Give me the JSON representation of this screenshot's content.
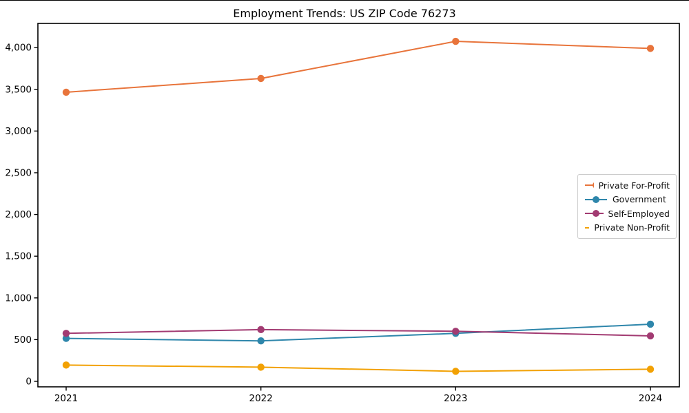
{
  "chart_data": {
    "type": "line",
    "title": "Employment Trends: US ZIP Code 76273",
    "xlabel": "",
    "ylabel": "",
    "x_categories": [
      "2021",
      "2022",
      "2023",
      "2024"
    ],
    "series": [
      {
        "name": "Private For-Profit",
        "color": "#E8743B",
        "values": [
          3465,
          3630,
          4075,
          3990
        ]
      },
      {
        "name": "Government",
        "color": "#2E86AB",
        "values": [
          515,
          485,
          575,
          685
        ]
      },
      {
        "name": "Self-Employed",
        "color": "#A23B72",
        "values": [
          575,
          620,
          600,
          545
        ]
      },
      {
        "name": "Private Non-Profit",
        "color": "#F2A104",
        "values": [
          195,
          170,
          120,
          145
        ]
      }
    ],
    "yticks": [
      0,
      500,
      1000,
      1500,
      2000,
      2500,
      3000,
      3500,
      4000
    ],
    "ytick_labels": [
      "0",
      "500",
      "1,000",
      "1,500",
      "2,000",
      "2,500",
      "3,000",
      "3,500",
      "4,000"
    ],
    "ylim": [
      -66,
      4290
    ],
    "grid": false,
    "legend_position": "center-right",
    "axis_color": "#000000",
    "background_color": "#ffffff"
  }
}
